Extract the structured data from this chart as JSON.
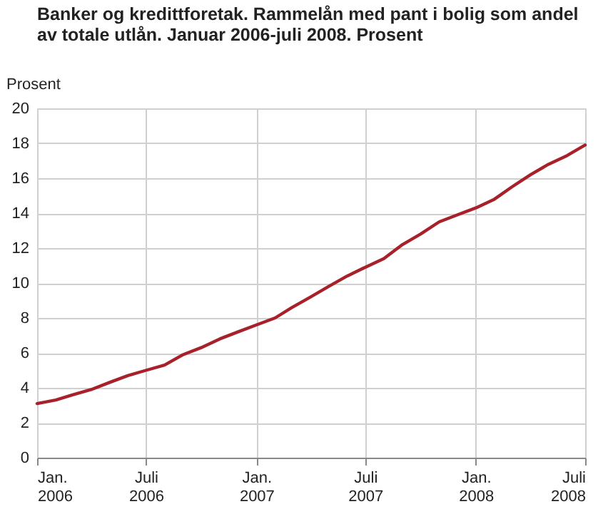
{
  "chart_data": {
    "type": "line",
    "title": "Banker og kredittforetak. Rammelån med pant i bolig som andel av totale utlån. Januar 2006-juli 2008. Prosent",
    "ylabel": "Prosent",
    "x": [
      "2006-01",
      "2006-02",
      "2006-03",
      "2006-04",
      "2006-05",
      "2006-06",
      "2006-07",
      "2006-08",
      "2006-09",
      "2006-10",
      "2006-11",
      "2006-12",
      "2007-01",
      "2007-02",
      "2007-03",
      "2007-04",
      "2007-05",
      "2007-06",
      "2007-07",
      "2007-08",
      "2007-09",
      "2007-10",
      "2007-11",
      "2007-12",
      "2008-01",
      "2008-02",
      "2008-03",
      "2008-04",
      "2008-05",
      "2008-06",
      "2008-07"
    ],
    "series": [
      {
        "color": "#a8202a",
        "values": [
          3.1,
          3.3,
          3.6,
          3.9,
          4.3,
          4.7,
          5.0,
          5.3,
          5.9,
          6.3,
          6.8,
          7.2,
          7.6,
          8.0,
          8.6,
          9.2,
          9.8,
          10.4,
          10.9,
          11.4,
          12.2,
          12.8,
          13.5,
          13.9,
          14.3,
          14.8,
          15.5,
          16.2,
          16.8,
          17.3,
          17.9
        ]
      }
    ],
    "xlim": [
      "2006-01",
      "2008-07"
    ],
    "xticks": [
      {
        "value": "2006-01",
        "label": "Jan.\n2006"
      },
      {
        "value": "2006-07",
        "label": "Juli\n2006"
      },
      {
        "value": "2007-01",
        "label": "Jan.\n2007"
      },
      {
        "value": "2007-07",
        "label": "Juli\n2007"
      },
      {
        "value": "2008-01",
        "label": "Jan.\n2008"
      },
      {
        "value": "2008-07",
        "label": "Juli\n2008"
      }
    ],
    "ylim": [
      0,
      20
    ],
    "yticks": [
      0,
      2,
      4,
      6,
      8,
      10,
      12,
      14,
      16,
      18,
      20
    ],
    "grid": true,
    "marker": "none",
    "line_style": "solid"
  }
}
